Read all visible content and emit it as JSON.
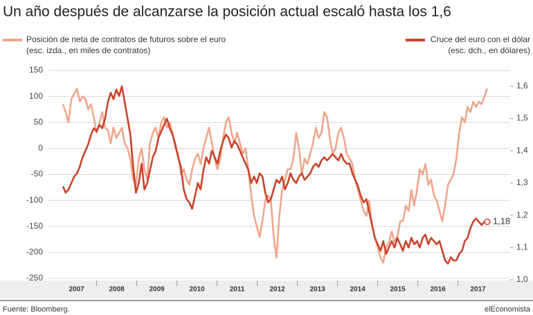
{
  "chart_data": {
    "type": "line",
    "title": "Un año después de alcanzarse la posición actual escaló hasta los 1,6",
    "source": "Fuente: Bloomberg.",
    "credit": "elEconomista",
    "x": [
      2007.16,
      2007.23,
      2007.3,
      2007.37,
      2007.44,
      2007.51,
      2007.58,
      2007.65,
      2007.72,
      2007.79,
      2007.86,
      2007.93,
      2008.0,
      2008.07,
      2008.14,
      2008.21,
      2008.28,
      2008.35,
      2008.42,
      2008.49,
      2008.56,
      2008.63,
      2008.7,
      2008.77,
      2008.84,
      2008.91,
      2008.98,
      2009.05,
      2009.12,
      2009.19,
      2009.26,
      2009.33,
      2009.4,
      2009.47,
      2009.54,
      2009.61,
      2009.68,
      2009.75,
      2009.82,
      2009.89,
      2009.96,
      2010.03,
      2010.1,
      2010.17,
      2010.24,
      2010.31,
      2010.38,
      2010.45,
      2010.52,
      2010.59,
      2010.66,
      2010.73,
      2010.8,
      2010.87,
      2010.94,
      2011.01,
      2011.08,
      2011.15,
      2011.22,
      2011.29,
      2011.36,
      2011.43,
      2011.5,
      2011.57,
      2011.64,
      2011.71,
      2011.78,
      2011.85,
      2011.92,
      2011.99,
      2012.06,
      2012.13,
      2012.2,
      2012.27,
      2012.34,
      2012.41,
      2012.48,
      2012.55,
      2012.62,
      2012.69,
      2012.76,
      2012.83,
      2012.9,
      2012.97,
      2013.04,
      2013.11,
      2013.18,
      2013.25,
      2013.32,
      2013.39,
      2013.46,
      2013.53,
      2013.6,
      2013.67,
      2013.74,
      2013.81,
      2013.88,
      2013.95,
      2014.02,
      2014.09,
      2014.16,
      2014.23,
      2014.3,
      2014.37,
      2014.44,
      2014.51,
      2014.58,
      2014.65,
      2014.72,
      2014.79,
      2014.86,
      2014.93,
      2015.0,
      2015.07,
      2015.14,
      2015.21,
      2015.28,
      2015.35,
      2015.42,
      2015.49,
      2015.56,
      2015.63,
      2015.7,
      2015.77,
      2015.84,
      2015.91,
      2015.98,
      2016.05,
      2016.12,
      2016.19,
      2016.26,
      2016.33,
      2016.4,
      2016.47,
      2016.54,
      2016.61,
      2016.68,
      2016.75,
      2016.82,
      2016.89,
      2016.96,
      2017.03,
      2017.1,
      2017.17,
      2017.24,
      2017.31,
      2017.38,
      2017.45,
      2017.52,
      2017.59,
      2017.66,
      2017.73
    ],
    "series": [
      {
        "name": "Posición de neta de contratos de futuros sobre el euro",
        "scale_note": "(esc. izda., en miles de contratos)",
        "color": "#f0a68c",
        "axis": "y",
        "values": [
          85,
          70,
          50,
          95,
          105,
          115,
          90,
          100,
          95,
          75,
          85,
          60,
          30,
          50,
          70,
          40,
          35,
          10,
          40,
          20,
          30,
          40,
          10,
          0,
          -20,
          -60,
          -70,
          -20,
          0,
          -40,
          -60,
          10,
          30,
          40,
          20,
          50,
          60,
          40,
          50,
          30,
          0,
          -10,
          -50,
          -40,
          -60,
          -70,
          -40,
          -20,
          -10,
          -30,
          0,
          20,
          40,
          10,
          -20,
          -40,
          -20,
          20,
          50,
          60,
          30,
          10,
          30,
          10,
          -10,
          0,
          -40,
          -90,
          -130,
          -150,
          -170,
          -140,
          -100,
          -90,
          -100,
          -170,
          -210,
          -130,
          -80,
          -60,
          -40,
          -40,
          -20,
          30,
          0,
          -50,
          -20,
          -30,
          -10,
          10,
          40,
          20,
          30,
          70,
          60,
          20,
          -10,
          0,
          30,
          40,
          20,
          -10,
          -20,
          -30,
          -60,
          -80,
          -100,
          -120,
          -130,
          -100,
          -150,
          -170,
          -190,
          -210,
          -220,
          -190,
          -180,
          -160,
          -180,
          -170,
          -140,
          -140,
          -110,
          -120,
          -80,
          -110,
          -80,
          -40,
          -50,
          -30,
          -70,
          -60,
          -90,
          -100,
          -120,
          -140,
          -110,
          -70,
          -60,
          -50,
          -20,
          30,
          60,
          50,
          80,
          70,
          90,
          80,
          90,
          85,
          100,
          115
        ]
      },
      {
        "name": "Cruce del euro con el dólar",
        "scale_note": "(esc. dch., en dólares)",
        "color": "#c8432b",
        "axis": "y2",
        "values": [
          1.29,
          1.27,
          1.28,
          1.3,
          1.32,
          1.33,
          1.35,
          1.38,
          1.4,
          1.42,
          1.45,
          1.47,
          1.46,
          1.48,
          1.47,
          1.5,
          1.55,
          1.58,
          1.56,
          1.59,
          1.57,
          1.6,
          1.55,
          1.5,
          1.45,
          1.35,
          1.27,
          1.3,
          1.36,
          1.28,
          1.3,
          1.34,
          1.38,
          1.4,
          1.44,
          1.46,
          1.48,
          1.5,
          1.47,
          1.45,
          1.42,
          1.38,
          1.35,
          1.28,
          1.25,
          1.24,
          1.22,
          1.26,
          1.3,
          1.28,
          1.34,
          1.38,
          1.36,
          1.4,
          1.38,
          1.36,
          1.4,
          1.43,
          1.45,
          1.44,
          1.41,
          1.43,
          1.42,
          1.4,
          1.38,
          1.36,
          1.34,
          1.3,
          1.32,
          1.3,
          1.33,
          1.32,
          1.27,
          1.24,
          1.25,
          1.28,
          1.31,
          1.3,
          1.32,
          1.28,
          1.3,
          1.33,
          1.31,
          1.3,
          1.32,
          1.33,
          1.31,
          1.32,
          1.33,
          1.35,
          1.36,
          1.35,
          1.37,
          1.38,
          1.37,
          1.38,
          1.39,
          1.38,
          1.37,
          1.39,
          1.37,
          1.36,
          1.36,
          1.33,
          1.31,
          1.29,
          1.26,
          1.24,
          1.25,
          1.21,
          1.17,
          1.13,
          1.11,
          1.09,
          1.12,
          1.08,
          1.1,
          1.12,
          1.1,
          1.13,
          1.11,
          1.09,
          1.12,
          1.1,
          1.13,
          1.11,
          1.12,
          1.1,
          1.13,
          1.14,
          1.11,
          1.13,
          1.12,
          1.11,
          1.12,
          1.09,
          1.06,
          1.05,
          1.07,
          1.06,
          1.06,
          1.08,
          1.09,
          1.12,
          1.13,
          1.16,
          1.18,
          1.19,
          1.18,
          1.17,
          1.18,
          1.18
        ]
      }
    ],
    "annotations": [
      {
        "text": "1,18",
        "x": 2017.73,
        "y": 1.18,
        "axis": "y2"
      }
    ],
    "xlim": [
      2006.8,
      2018.3
    ],
    "xticks": [
      {
        "value": 2007.5,
        "label": "2007"
      },
      {
        "value": 2008.5,
        "label": "2008"
      },
      {
        "value": 2009.5,
        "label": "2009"
      },
      {
        "value": 2010.5,
        "label": "2010"
      },
      {
        "value": 2011.5,
        "label": "2011"
      },
      {
        "value": 2012.5,
        "label": "2012"
      },
      {
        "value": 2013.5,
        "label": "2013"
      },
      {
        "value": 2014.5,
        "label": "2014"
      },
      {
        "value": 2015.5,
        "label": "2015"
      },
      {
        "value": 2016.5,
        "label": "2016"
      },
      {
        "value": 2017.5,
        "label": "2017"
      }
    ],
    "ylim": [
      -252.7,
      159.3
    ],
    "yticks": [
      150,
      100,
      50,
      0,
      -50,
      -100,
      -150,
      -200,
      -250
    ],
    "y2lim": [
      1.0,
      1.664
    ],
    "y2ticks": [
      {
        "value": 1.6,
        "label": "1,6"
      },
      {
        "value": 1.5,
        "label": "1,5"
      },
      {
        "value": 1.4,
        "label": "1,4"
      },
      {
        "value": 1.3,
        "label": "1,3"
      },
      {
        "value": 1.2,
        "label": "1,2"
      },
      {
        "value": 1.1,
        "label": "1,1"
      },
      {
        "value": 1.0,
        "label": "1,0"
      }
    ],
    "grid": true
  }
}
